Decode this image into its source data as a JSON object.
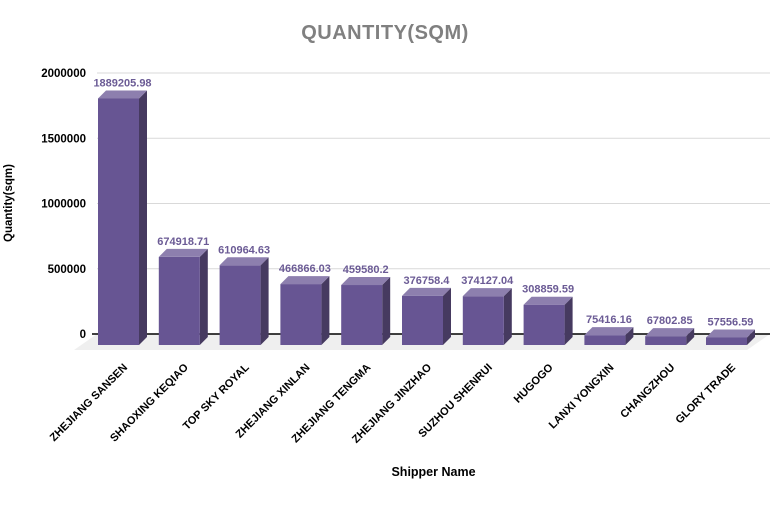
{
  "chart_data": {
    "type": "bar",
    "style": "3d-bars",
    "title": "QUANTITY(SQM)",
    "xlabel": "Shipper Name",
    "ylabel": "Quantity(sqm)",
    "categories": [
      "ZHEJIANG SANSEN",
      "SHAOXING KEQIAO",
      "TOP SKY ROYAL",
      "ZHEJIANG XINLAN",
      "ZHEJIANG TENGMA",
      "ZHEJIANG JINZHAO",
      "SUZHOU SHENRUI",
      "HUGOGO",
      "LANXI YONGXIN",
      "CHANGZHOU",
      "GLORY TRADE"
    ],
    "values": [
      1889205.98,
      674918.71,
      610964.63,
      466866.03,
      459580.2,
      376758.4,
      374127.04,
      308859.59,
      75416.16,
      67802.85,
      57556.59
    ],
    "value_labels": [
      "1889205.98",
      "674918.71",
      "610964.63",
      "466866.03",
      "459580.2",
      "376758.4",
      "374127.04",
      "308859.59",
      "75416.16",
      "67802.85",
      "57556.59"
    ],
    "y_ticks": [
      0,
      500000,
      1000000,
      1500000,
      2000000
    ],
    "y_tick_labels": [
      "0",
      "500000",
      "1000000",
      "1500000",
      "2000000"
    ],
    "ylim": [
      0,
      2000000
    ],
    "grid": true,
    "legend": "none",
    "colors": {
      "bar_front": "#675593",
      "bar_top": "#8d7fae",
      "bar_side": "#463a60",
      "value_label": "#6b5b95",
      "title": "#808080",
      "axis_text": "#000000",
      "axis_line": "#000000",
      "gridline": "#d9d9d9",
      "floor": "#efefef",
      "background": "#ffffff"
    }
  }
}
